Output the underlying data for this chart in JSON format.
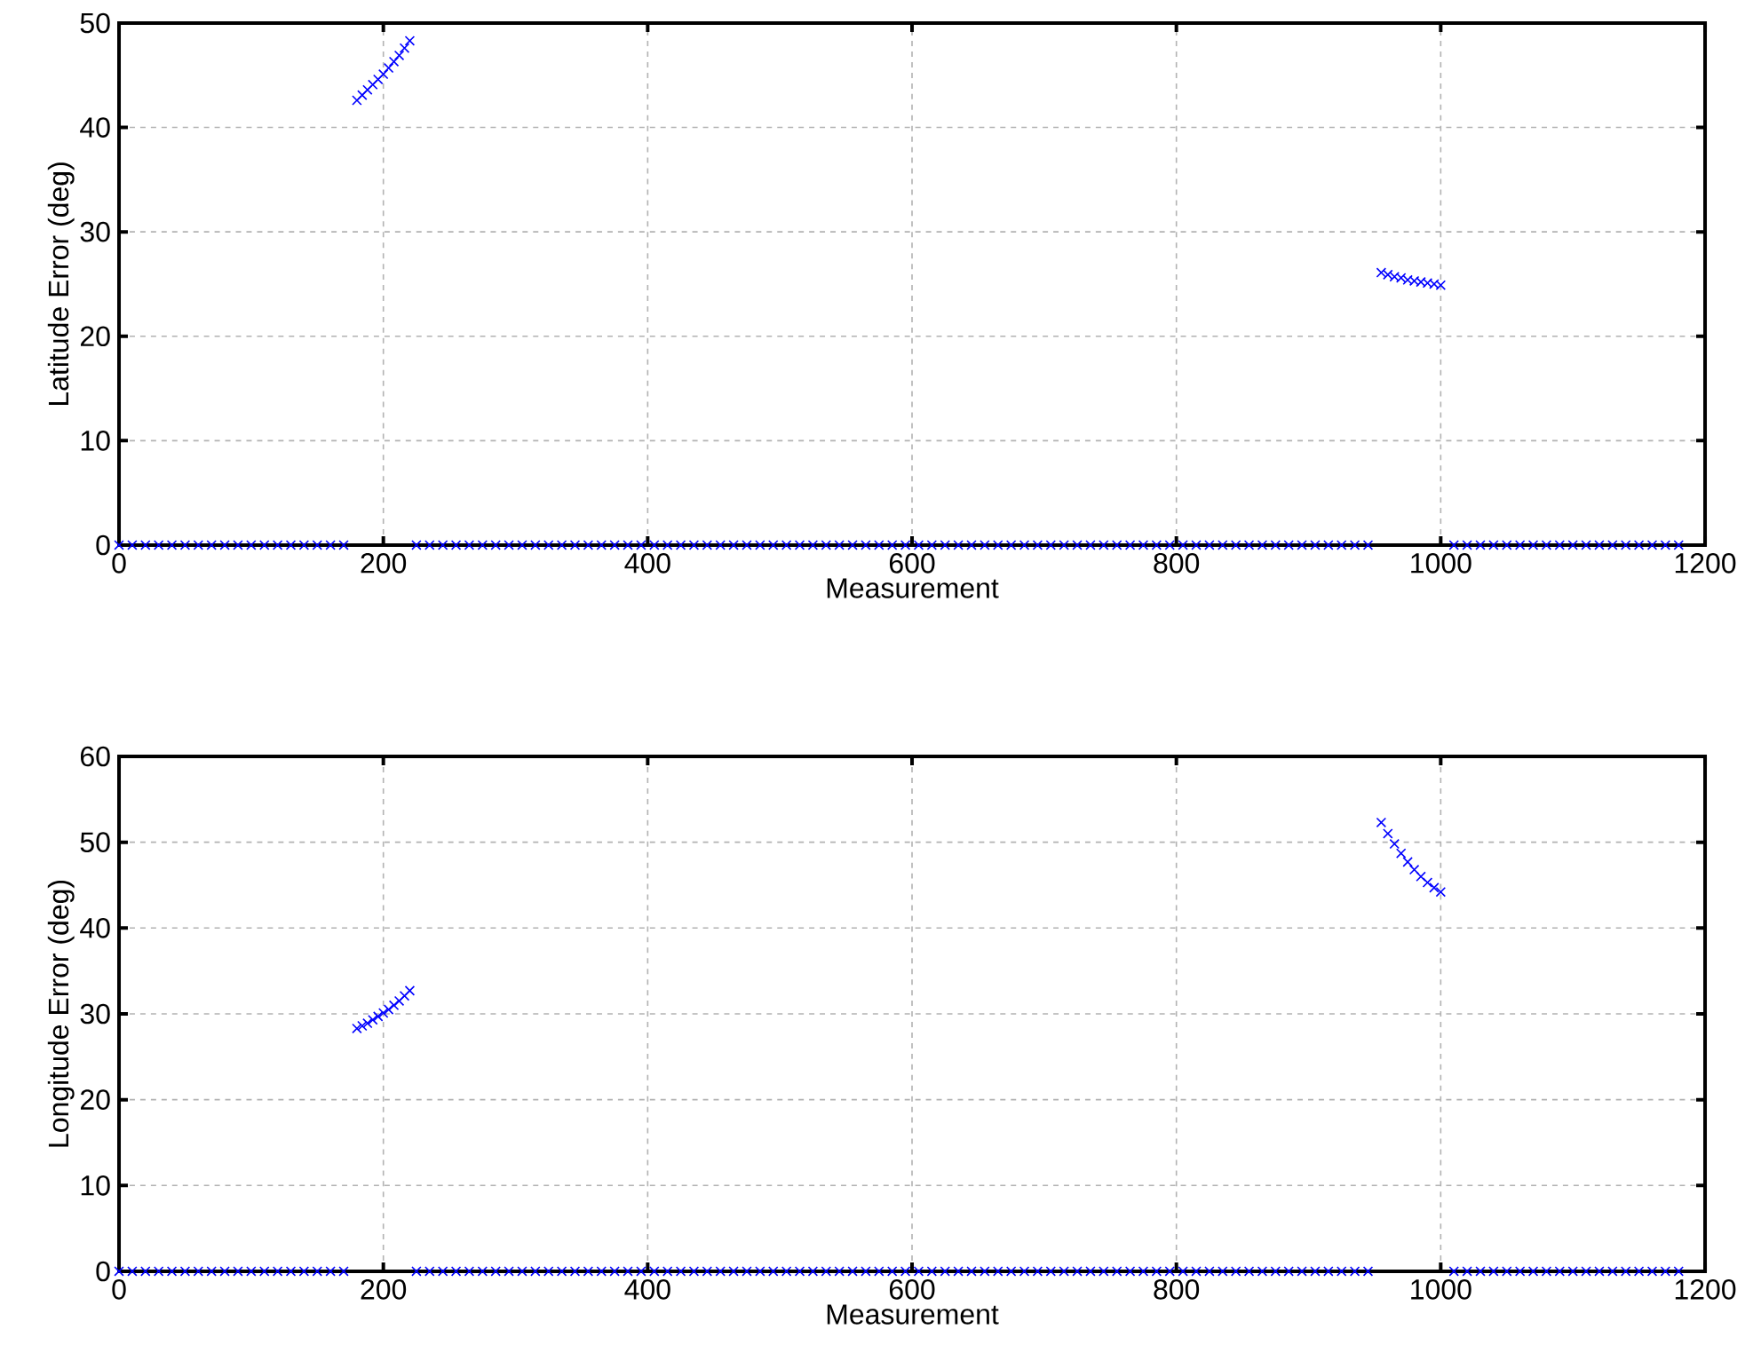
{
  "chart_data": [
    {
      "type": "scatter",
      "xlabel": "Measurement",
      "ylabel": "Latitude Error (deg)",
      "xlim": [
        0,
        1200
      ],
      "ylim": [
        0,
        50
      ],
      "xticks": [
        0,
        200,
        400,
        600,
        800,
        1000,
        1200
      ],
      "yticks": [
        0,
        10,
        20,
        30,
        40,
        50
      ],
      "grid": true,
      "marker": "cross",
      "series": [
        {
          "color": "#0000ff",
          "x": [
            0,
            10,
            20,
            30,
            40,
            50,
            60,
            70,
            80,
            90,
            100,
            110,
            120,
            130,
            140,
            150,
            160,
            170,
            225,
            235,
            245,
            255,
            265,
            275,
            285,
            295,
            305,
            315,
            325,
            335,
            345,
            355,
            365,
            375,
            385,
            395,
            405,
            415,
            425,
            435,
            445,
            455,
            465,
            475,
            485,
            495,
            505,
            515,
            525,
            535,
            545,
            555,
            565,
            575,
            585,
            595,
            605,
            615,
            625,
            635,
            645,
            655,
            665,
            675,
            685,
            695,
            705,
            715,
            725,
            735,
            745,
            755,
            765,
            775,
            785,
            795,
            805,
            815,
            825,
            835,
            845,
            855,
            865,
            875,
            885,
            895,
            905,
            915,
            925,
            935,
            945,
            1010,
            1020,
            1030,
            1040,
            1050,
            1060,
            1070,
            1080,
            1090,
            1100,
            1110,
            1120,
            1130,
            1140,
            1150,
            1160,
            1170,
            1180
          ],
          "values": [
            0,
            0,
            0,
            0,
            0,
            0,
            0,
            0,
            0,
            0,
            0,
            0,
            0,
            0,
            0,
            0,
            0,
            0,
            0,
            0,
            0,
            0,
            0,
            0,
            0,
            0,
            0,
            0,
            0,
            0,
            0,
            0,
            0,
            0,
            0,
            0,
            0,
            0,
            0,
            0,
            0,
            0,
            0,
            0,
            0,
            0,
            0,
            0,
            0,
            0,
            0,
            0,
            0,
            0,
            0,
            0,
            0,
            0,
            0,
            0,
            0,
            0,
            0,
            0,
            0,
            0,
            0,
            0,
            0,
            0,
            0,
            0,
            0,
            0,
            0,
            0,
            0,
            0,
            0,
            0,
            0,
            0,
            0,
            0,
            0,
            0,
            0,
            0,
            0,
            0,
            0,
            0,
            0,
            0,
            0,
            0,
            0,
            0,
            0,
            0,
            0,
            0,
            0,
            0,
            0,
            0,
            0,
            0,
            0
          ]
        },
        {
          "color": "#0000ff",
          "x": [
            180,
            184,
            188,
            192,
            196,
            200,
            204,
            208,
            212,
            216,
            220
          ],
          "values": [
            42.6,
            43.1,
            43.6,
            44.1,
            44.6,
            45.1,
            45.7,
            46.3,
            46.9,
            47.6,
            48.3
          ]
        },
        {
          "color": "#0000ff",
          "x": [
            955,
            960,
            965,
            970,
            975,
            980,
            985,
            990,
            995,
            1000
          ],
          "values": [
            26.1,
            25.9,
            25.7,
            25.6,
            25.4,
            25.3,
            25.2,
            25.1,
            25.0,
            24.9
          ]
        }
      ]
    },
    {
      "type": "scatter",
      "xlabel": "Measurement",
      "ylabel": "Longitude Error (deg)",
      "xlim": [
        0,
        1200
      ],
      "ylim": [
        0,
        60
      ],
      "xticks": [
        0,
        200,
        400,
        600,
        800,
        1000,
        1200
      ],
      "yticks": [
        0,
        10,
        20,
        30,
        40,
        50,
        60
      ],
      "grid": true,
      "marker": "cross",
      "series": [
        {
          "color": "#0000ff",
          "x": [
            0,
            10,
            20,
            30,
            40,
            50,
            60,
            70,
            80,
            90,
            100,
            110,
            120,
            130,
            140,
            150,
            160,
            170,
            225,
            235,
            245,
            255,
            265,
            275,
            285,
            295,
            305,
            315,
            325,
            335,
            345,
            355,
            365,
            375,
            385,
            395,
            405,
            415,
            425,
            435,
            445,
            455,
            465,
            475,
            485,
            495,
            505,
            515,
            525,
            535,
            545,
            555,
            565,
            575,
            585,
            595,
            605,
            615,
            625,
            635,
            645,
            655,
            665,
            675,
            685,
            695,
            705,
            715,
            725,
            735,
            745,
            755,
            765,
            775,
            785,
            795,
            805,
            815,
            825,
            835,
            845,
            855,
            865,
            875,
            885,
            895,
            905,
            915,
            925,
            935,
            945,
            1010,
            1020,
            1030,
            1040,
            1050,
            1060,
            1070,
            1080,
            1090,
            1100,
            1110,
            1120,
            1130,
            1140,
            1150,
            1160,
            1170,
            1180
          ],
          "values": [
            0,
            0,
            0,
            0,
            0,
            0,
            0,
            0,
            0,
            0,
            0,
            0,
            0,
            0,
            0,
            0,
            0,
            0,
            0,
            0,
            0,
            0,
            0,
            0,
            0,
            0,
            0,
            0,
            0,
            0,
            0,
            0,
            0,
            0,
            0,
            0,
            0,
            0,
            0,
            0,
            0,
            0,
            0,
            0,
            0,
            0,
            0,
            0,
            0,
            0,
            0,
            0,
            0,
            0,
            0,
            0,
            0,
            0,
            0,
            0,
            0,
            0,
            0,
            0,
            0,
            0,
            0,
            0,
            0,
            0,
            0,
            0,
            0,
            0,
            0,
            0,
            0,
            0,
            0,
            0,
            0,
            0,
            0,
            0,
            0,
            0,
            0,
            0,
            0,
            0,
            0,
            0,
            0,
            0,
            0,
            0,
            0,
            0,
            0,
            0,
            0,
            0,
            0,
            0,
            0,
            0,
            0,
            0,
            0
          ]
        },
        {
          "color": "#0000ff",
          "x": [
            180,
            184,
            188,
            192,
            196,
            200,
            204,
            208,
            212,
            216,
            220
          ],
          "values": [
            28.3,
            28.6,
            28.9,
            29.3,
            29.7,
            30.1,
            30.5,
            31.0,
            31.5,
            32.1,
            32.7
          ]
        },
        {
          "color": "#0000ff",
          "x": [
            955,
            960,
            965,
            970,
            975,
            980,
            985,
            990,
            995,
            1000
          ],
          "values": [
            52.3,
            51.0,
            49.8,
            48.7,
            47.7,
            46.8,
            46.0,
            45.3,
            44.7,
            44.2
          ]
        }
      ]
    }
  ]
}
